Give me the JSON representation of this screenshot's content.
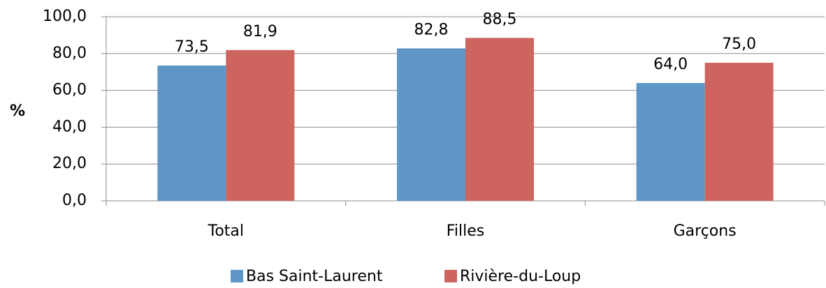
{
  "chart_data": {
    "type": "bar",
    "y_label": "%",
    "categories": [
      "Total",
      "Filles",
      "Garçons"
    ],
    "series": [
      {
        "name": "Bas Saint-Laurent",
        "color": "#5f96c8",
        "values": [
          73.5,
          82.8,
          64.0
        ],
        "value_labels": [
          "73,5",
          "82,8",
          "64,0"
        ]
      },
      {
        "name": "Rivière-du-Loup",
        "color": "#cd645e",
        "values": [
          81.9,
          88.5,
          75.0
        ],
        "value_labels": [
          "81,9",
          "88,5",
          "75,0"
        ]
      }
    ],
    "ylim": [
      0,
      100
    ],
    "yticks": [
      {
        "value": 0,
        "label": "0,0"
      },
      {
        "value": 20,
        "label": "20,0"
      },
      {
        "value": 40,
        "label": "40,0"
      },
      {
        "value": 60,
        "label": "60,0"
      },
      {
        "value": 80,
        "label": "80,0"
      },
      {
        "value": 100,
        "label": "100,0"
      }
    ],
    "grid": true,
    "legend": "bottom"
  }
}
